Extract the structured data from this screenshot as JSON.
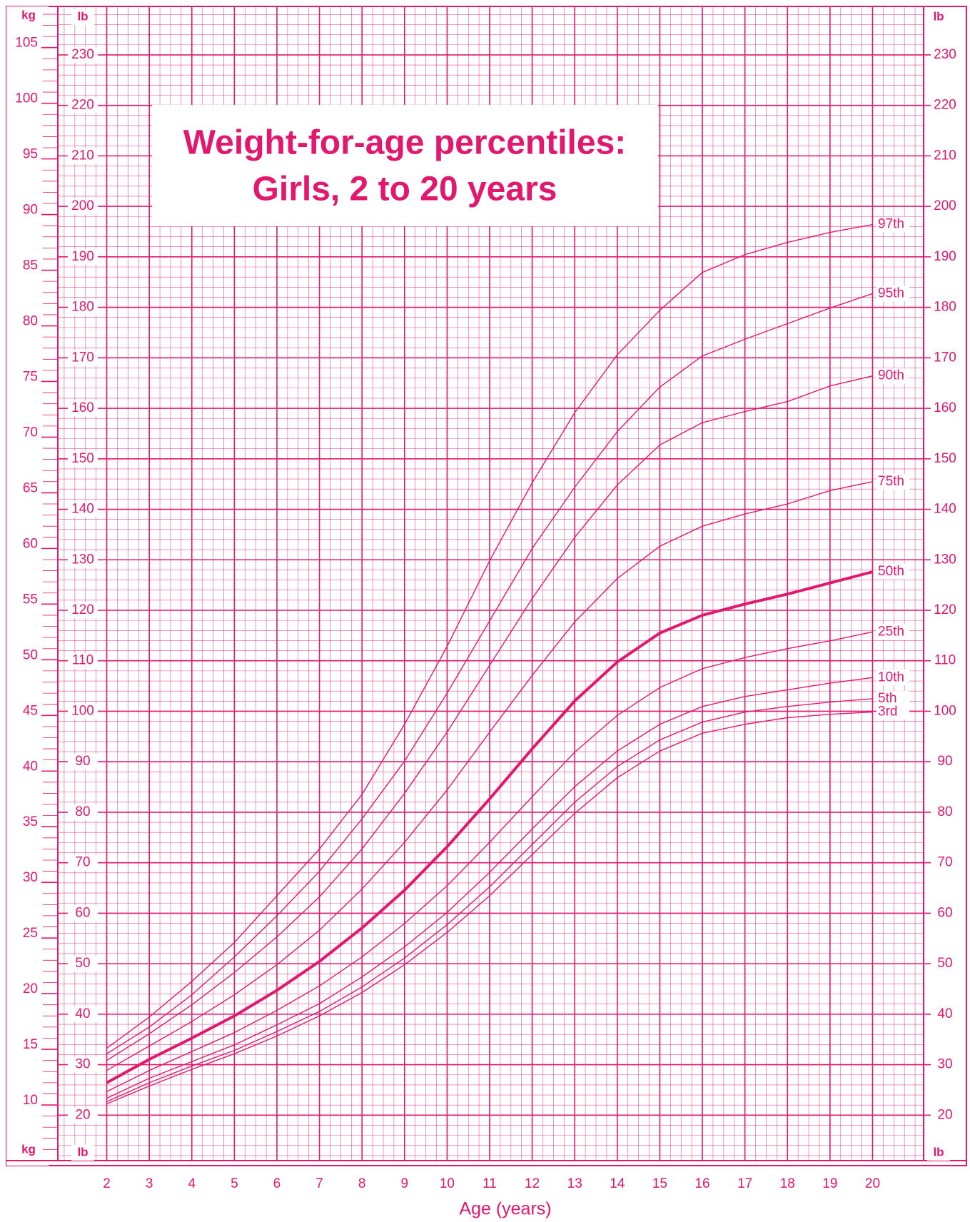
{
  "chart_data": {
    "type": "line",
    "title": [
      "Weight-for-age percentiles:",
      "Girls, 2 to 20 years"
    ],
    "x_label": "Age (years)",
    "y_unit": "kg",
    "y2_unit": "lb",
    "x": [
      2,
      3,
      4,
      5,
      6,
      7,
      8,
      9,
      10,
      11,
      12,
      13,
      14,
      15,
      16,
      17,
      18,
      19,
      20
    ],
    "xlim": [
      0.85,
      21.2
    ],
    "xticks": [
      2,
      3,
      4,
      5,
      6,
      7,
      8,
      9,
      10,
      11,
      12,
      13,
      14,
      15,
      16,
      17,
      18,
      19,
      20
    ],
    "ylim": [
      5,
      108.7
    ],
    "yticks": [
      10,
      15,
      20,
      25,
      30,
      35,
      40,
      45,
      50,
      55,
      60,
      65,
      70,
      75,
      80,
      85,
      90,
      95,
      100,
      105
    ],
    "y2lim": [
      11.0,
      239.6
    ],
    "y2ticks": [
      20,
      30,
      40,
      50,
      60,
      70,
      80,
      90,
      100,
      110,
      120,
      130,
      140,
      150,
      160,
      170,
      180,
      190,
      200,
      210,
      220,
      230
    ],
    "grid": true,
    "series": [
      {
        "name": "97th",
        "color": "#e2186f",
        "values": [
          15.1,
          17.9,
          21.1,
          24.6,
          28.8,
          33.0,
          37.9,
          44.2,
          51.2,
          58.9,
          65.9,
          72.2,
          77.4,
          81.4,
          84.8,
          86.4,
          87.5,
          88.4,
          89.1
        ]
      },
      {
        "name": "95th",
        "color": "#e2186f",
        "values": [
          14.6,
          17.0,
          19.9,
          23.3,
          27.0,
          31.0,
          35.7,
          40.9,
          47.0,
          53.5,
          60.0,
          65.5,
          70.5,
          74.5,
          77.3,
          78.8,
          80.2,
          81.6,
          82.9
        ]
      },
      {
        "name": "90th",
        "color": "#e2186f",
        "values": [
          14.0,
          16.4,
          19.0,
          21.9,
          25.1,
          28.7,
          33.0,
          38.0,
          43.5,
          49.5,
          55.5,
          61.0,
          65.7,
          69.3,
          71.3,
          72.3,
          73.2,
          74.6,
          75.5
        ]
      },
      {
        "name": "75th",
        "color": "#e2186f",
        "values": [
          13.1,
          15.3,
          17.5,
          19.9,
          22.6,
          25.7,
          29.4,
          33.6,
          38.3,
          43.5,
          48.6,
          53.4,
          57.3,
          60.2,
          62.0,
          63.1,
          64.0,
          65.2,
          66.0
        ]
      },
      {
        "name": "50th",
        "color": "#e2186f",
        "bold": true,
        "values": [
          12.0,
          14.1,
          16.0,
          18.0,
          20.3,
          22.9,
          25.9,
          29.3,
          33.2,
          37.5,
          42.0,
          46.3,
          49.8,
          52.4,
          54.0,
          55.0,
          55.9,
          56.9,
          57.9
        ]
      },
      {
        "name": "25th",
        "color": "#e2186f",
        "values": [
          11.2,
          13.1,
          14.8,
          16.5,
          18.5,
          20.7,
          23.3,
          26.3,
          29.7,
          33.6,
          37.7,
          41.7,
          45.0,
          47.5,
          49.2,
          50.2,
          51.0,
          51.7,
          52.5
        ]
      },
      {
        "name": "10th",
        "color": "#e2186f",
        "values": [
          10.6,
          12.4,
          13.9,
          15.4,
          17.2,
          19.1,
          21.5,
          24.2,
          27.3,
          30.9,
          34.8,
          38.6,
          41.8,
          44.2,
          45.8,
          46.7,
          47.3,
          47.9,
          48.4
        ]
      },
      {
        "name": "5th",
        "color": "#e2186f",
        "values": [
          10.3,
          12.0,
          13.5,
          14.9,
          16.6,
          18.4,
          20.6,
          23.2,
          26.2,
          29.6,
          33.4,
          37.2,
          40.4,
          42.8,
          44.4,
          45.3,
          45.8,
          46.2,
          46.5
        ]
      },
      {
        "name": "3rd",
        "color": "#e2186f",
        "values": [
          10.1,
          11.7,
          13.2,
          14.6,
          16.2,
          18.0,
          20.1,
          22.6,
          25.5,
          28.8,
          32.5,
          36.2,
          39.4,
          41.8,
          43.4,
          44.2,
          44.8,
          45.1,
          45.3
        ]
      }
    ]
  }
}
